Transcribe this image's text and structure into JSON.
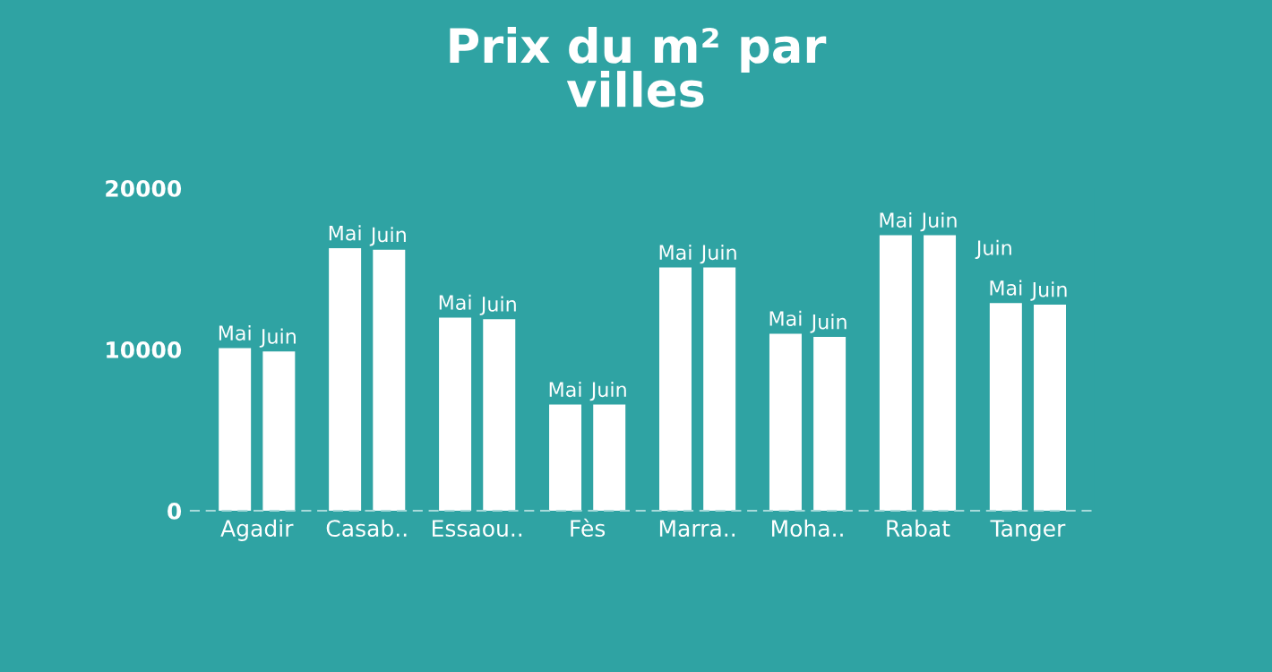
{
  "chart_data": {
    "type": "bar",
    "title": "Prix du m² par\nvilles",
    "categories": [
      "Agadir",
      "Casab..",
      "Essaou..",
      "Fès",
      "Marra..",
      "Moha..",
      "Rabat",
      "Tanger"
    ],
    "series": [
      {
        "name": "Mai",
        "color": "#ffffff",
        "values": [
          10000,
          16200,
          11900,
          6500,
          15000,
          10900,
          17000,
          12800
        ]
      },
      {
        "name": "Juin",
        "color": "#ffffff",
        "values": [
          9800,
          16100,
          11800,
          6500,
          15000,
          10700,
          17000,
          12700
        ]
      }
    ],
    "annotations": [
      "Juin"
    ],
    "ylim": [
      0,
      20000
    ],
    "yticks": [
      0,
      10000,
      20000
    ],
    "grid": false,
    "legend": false
  }
}
